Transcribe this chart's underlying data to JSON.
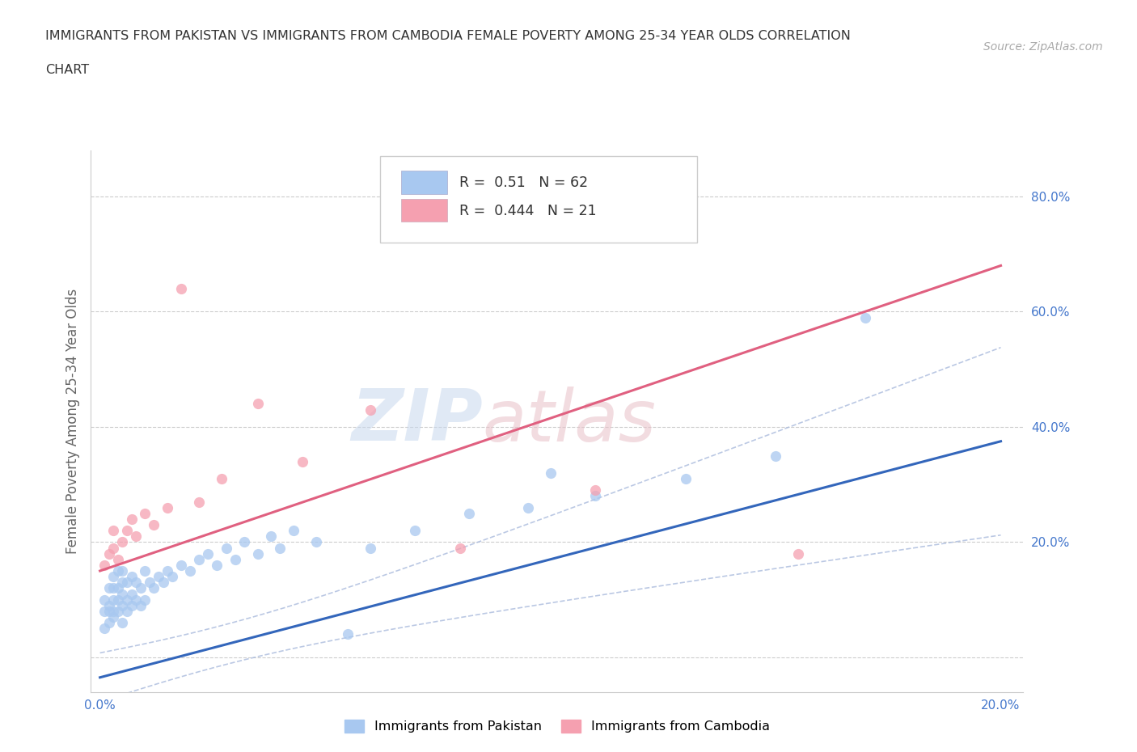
{
  "title_line1": "IMMIGRANTS FROM PAKISTAN VS IMMIGRANTS FROM CAMBODIA FEMALE POVERTY AMONG 25-34 YEAR OLDS CORRELATION",
  "title_line2": "CHART",
  "source": "Source: ZipAtlas.com",
  "ylabel": "Female Poverty Among 25-34 Year Olds",
  "xlim": [
    -0.002,
    0.205
  ],
  "ylim": [
    -0.06,
    0.88
  ],
  "xticks": [
    0.0,
    0.05,
    0.1,
    0.15,
    0.2
  ],
  "xtick_labels": [
    "0.0%",
    "",
    "",
    "",
    "20.0%"
  ],
  "yticks_left": [],
  "yticks_right": [
    0.0,
    0.2,
    0.4,
    0.6,
    0.8
  ],
  "ytick_right_labels": [
    "",
    "20.0%",
    "40.0%",
    "60.0%",
    "80.0%"
  ],
  "pakistan_color": "#a8c8f0",
  "cambodia_color": "#f5a0b0",
  "pakistan_line_color": "#3366bb",
  "cambodia_line_color": "#e06080",
  "pakistan_dash_color": "#aabbdd",
  "R_pakistan": 0.51,
  "N_pakistan": 62,
  "R_cambodia": 0.444,
  "N_cambodia": 21,
  "pak_intercept": -0.035,
  "pak_slope": 2.05,
  "cam_intercept": 0.15,
  "cam_slope": 2.65,
  "pakistan_x": [
    0.001,
    0.001,
    0.001,
    0.002,
    0.002,
    0.002,
    0.002,
    0.003,
    0.003,
    0.003,
    0.003,
    0.003,
    0.004,
    0.004,
    0.004,
    0.004,
    0.005,
    0.005,
    0.005,
    0.005,
    0.005,
    0.006,
    0.006,
    0.006,
    0.007,
    0.007,
    0.007,
    0.008,
    0.008,
    0.009,
    0.009,
    0.01,
    0.01,
    0.011,
    0.012,
    0.013,
    0.014,
    0.015,
    0.016,
    0.018,
    0.02,
    0.022,
    0.024,
    0.026,
    0.028,
    0.03,
    0.032,
    0.035,
    0.038,
    0.04,
    0.043,
    0.048,
    0.055,
    0.06,
    0.07,
    0.082,
    0.095,
    0.11,
    0.13,
    0.15,
    0.17,
    0.1
  ],
  "pakistan_y": [
    0.05,
    0.08,
    0.1,
    0.06,
    0.08,
    0.09,
    0.12,
    0.07,
    0.08,
    0.1,
    0.12,
    0.14,
    0.08,
    0.1,
    0.12,
    0.15,
    0.06,
    0.09,
    0.11,
    0.13,
    0.15,
    0.08,
    0.1,
    0.13,
    0.09,
    0.11,
    0.14,
    0.1,
    0.13,
    0.09,
    0.12,
    0.1,
    0.15,
    0.13,
    0.12,
    0.14,
    0.13,
    0.15,
    0.14,
    0.16,
    0.15,
    0.17,
    0.18,
    0.16,
    0.19,
    0.17,
    0.2,
    0.18,
    0.21,
    0.19,
    0.22,
    0.2,
    0.04,
    0.19,
    0.22,
    0.25,
    0.26,
    0.28,
    0.31,
    0.35,
    0.59,
    0.32
  ],
  "cambodia_x": [
    0.001,
    0.002,
    0.003,
    0.003,
    0.004,
    0.005,
    0.006,
    0.007,
    0.008,
    0.01,
    0.012,
    0.015,
    0.018,
    0.022,
    0.027,
    0.035,
    0.045,
    0.06,
    0.08,
    0.11,
    0.155
  ],
  "cambodia_y": [
    0.16,
    0.18,
    0.19,
    0.22,
    0.17,
    0.2,
    0.22,
    0.24,
    0.21,
    0.25,
    0.23,
    0.26,
    0.64,
    0.27,
    0.31,
    0.44,
    0.34,
    0.43,
    0.19,
    0.29,
    0.18
  ],
  "watermark_zip": "ZIP",
  "watermark_atlas": "atlas",
  "background_color": "#ffffff",
  "grid_color": "#cccccc"
}
